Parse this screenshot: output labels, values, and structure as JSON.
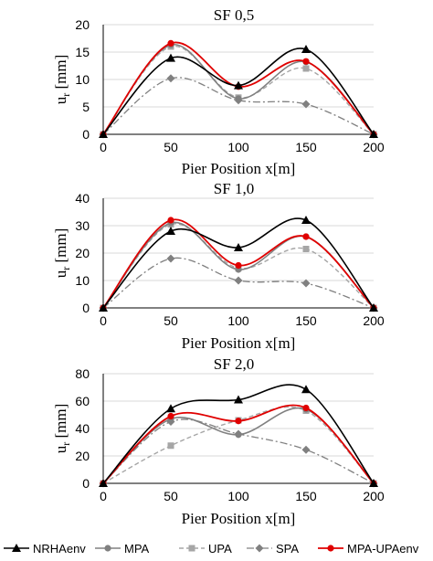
{
  "chart_data": [
    {
      "type": "line",
      "title": "SF 0,5",
      "xlabel": "Pier Position x[m]",
      "ylabel": "u",
      "ylabel_sub": "r",
      "ylabel_unit": " [mm]",
      "xlim": [
        0,
        200
      ],
      "ylim": [
        0,
        20
      ],
      "xticks": [
        0,
        50,
        100,
        150,
        200
      ],
      "yticks": [
        0,
        5,
        10,
        15,
        20
      ],
      "grid": "horizontal",
      "x": [
        0,
        50,
        100,
        150,
        200
      ],
      "series": [
        {
          "name": "NRHAenv",
          "values": [
            0,
            13.9,
            8.9,
            15.5,
            0
          ]
        },
        {
          "name": "MPA",
          "values": [
            0,
            16.3,
            6.5,
            13.2,
            0
          ]
        },
        {
          "name": "UPA",
          "values": [
            0,
            16.0,
            6.7,
            12.0,
            0
          ]
        },
        {
          "name": "SPA",
          "values": [
            0,
            10.2,
            6.2,
            5.5,
            0
          ]
        },
        {
          "name": "MPA-UPAenv",
          "values": [
            0,
            16.6,
            8.7,
            13.3,
            0
          ]
        }
      ]
    },
    {
      "type": "line",
      "title": "SF 1,0",
      "xlabel": "Pier Position x[m]",
      "ylabel": "u",
      "ylabel_sub": "r",
      "ylabel_unit": " [mm]",
      "xlim": [
        0,
        200
      ],
      "ylim": [
        0,
        40
      ],
      "xticks": [
        0,
        50,
        100,
        150,
        200
      ],
      "yticks": [
        0,
        10,
        20,
        30,
        40
      ],
      "grid": "horizontal",
      "x": [
        0,
        50,
        100,
        150,
        200
      ],
      "series": [
        {
          "name": "NRHAenv",
          "values": [
            0,
            28.0,
            22.0,
            32.0,
            0
          ]
        },
        {
          "name": "MPA",
          "values": [
            0,
            31.0,
            14.0,
            26.0,
            0
          ]
        },
        {
          "name": "UPA",
          "values": [
            0,
            30.5,
            14.5,
            21.5,
            0
          ]
        },
        {
          "name": "SPA",
          "values": [
            0,
            18.0,
            10.0,
            9.0,
            0
          ]
        },
        {
          "name": "MPA-UPAenv",
          "values": [
            0,
            32.0,
            15.5,
            26.0,
            0
          ]
        }
      ]
    },
    {
      "type": "line",
      "title": "SF 2,0",
      "xlabel": "Pier Position x[m]",
      "ylabel": "u",
      "ylabel_sub": "r",
      "ylabel_unit": " [mm]",
      "xlim": [
        0,
        200
      ],
      "ylim": [
        0,
        80
      ],
      "xticks": [
        0,
        50,
        100,
        150,
        200
      ],
      "yticks": [
        0,
        20,
        40,
        60,
        80
      ],
      "grid": "horizontal",
      "x": [
        0,
        50,
        100,
        150,
        200
      ],
      "series": [
        {
          "name": "NRHAenv",
          "values": [
            0,
            54.5,
            61.0,
            68.5,
            0
          ]
        },
        {
          "name": "MPA",
          "values": [
            0,
            47.0,
            35.5,
            54.0,
            0
          ]
        },
        {
          "name": "UPA",
          "values": [
            0,
            27.5,
            46.0,
            53.0,
            0
          ]
        },
        {
          "name": "SPA",
          "values": [
            0,
            45.0,
            36.0,
            24.5,
            0
          ]
        },
        {
          "name": "MPA-UPAenv",
          "values": [
            0,
            49.0,
            45.5,
            55.0,
            0
          ]
        }
      ]
    }
  ],
  "legend": {
    "placement": "bottom",
    "entries": [
      "NRHAenv",
      "MPA",
      "UPA",
      "SPA",
      "MPA-UPAenv"
    ]
  },
  "colors": {
    "NRHAenv": "#000000",
    "MPA": "#808080",
    "UPA": "#a6a6a6",
    "SPA": "#808080",
    "MPA-UPAenv": "#e00000",
    "grid": "#d9d9d9",
    "axis": "#000000"
  }
}
